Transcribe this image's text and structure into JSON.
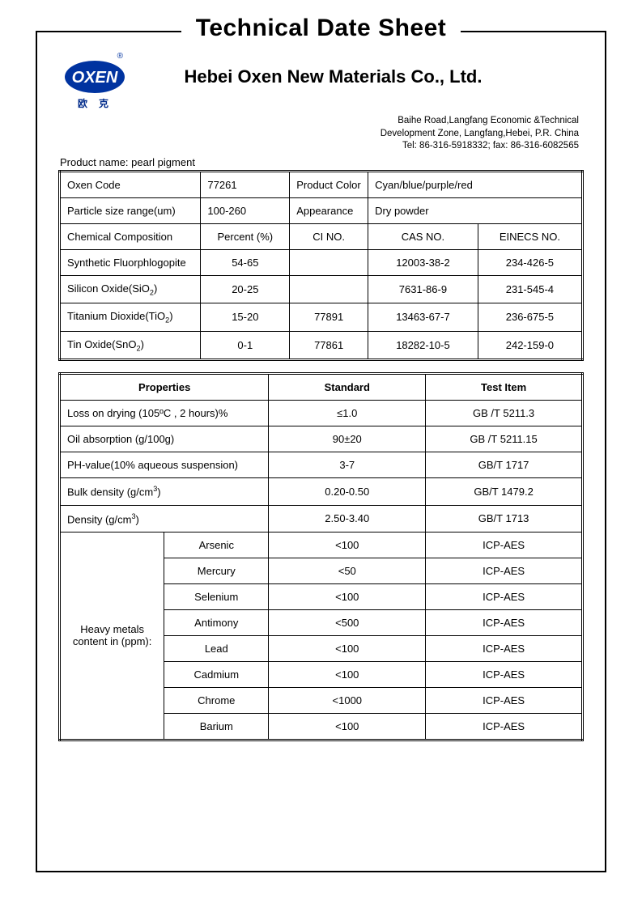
{
  "document": {
    "title": "Technical Date Sheet",
    "company": "Hebei Oxen New Materials Co., Ltd.",
    "logo_text": "OXEN",
    "logo_sub": "欧克",
    "reg_mark": "®",
    "address_line1": "Baihe Road,Langfang Economic &Technical",
    "address_line2": "Development Zone, Langfang,Hebei, P.R. China",
    "address_line3": "Tel: 86-316-5918332;     fax: 86-316-6082565",
    "product_name_label": "Product name: pearl pigment"
  },
  "table1": {
    "r1": {
      "c1": "Oxen Code",
      "c2": "77261",
      "c3": "Product Color",
      "c4": "Cyan/blue/purple/red"
    },
    "r2": {
      "c1": "Particle size range(um)",
      "c2": "100-260",
      "c3": "Appearance",
      "c4": "Dry powder"
    },
    "r3": {
      "c1": "Chemical Composition",
      "c2": "Percent (%)",
      "c3": "CI NO.",
      "c4": "CAS NO.",
      "c5": "EINECS NO."
    },
    "r4": {
      "c1": "Synthetic Fluorphlogopite",
      "c2": "54-65",
      "c3": "",
      "c4": "12003-38-2",
      "c5": "234-426-5"
    },
    "r5": {
      "c1_html": "Silicon Oxide(SiO<sub>2</sub>)",
      "c2": "20-25",
      "c3": "",
      "c4": "7631-86-9",
      "c5": "231-545-4"
    },
    "r6": {
      "c1_html": "Titanium Dioxide(TiO<sub>2</sub>)",
      "c2": "15-20",
      "c3": "77891",
      "c4": "13463-67-7",
      "c5": "236-675-5"
    },
    "r7": {
      "c1_html": "Tin Oxide(SnO<sub>2</sub>)",
      "c2": "0-1",
      "c3": "77861",
      "c4": "18282-10-5",
      "c5": "242-159-0"
    }
  },
  "table2": {
    "header": {
      "c1": "Properties",
      "c2": "Standard",
      "c3": "Test Item"
    },
    "rows": [
      {
        "c1": "Loss on drying (105ºC , 2 hours)%",
        "c2": "≤1.0",
        "c3": "GB /T 5211.3"
      },
      {
        "c1": "Oil absorption    (g/100g)",
        "c2": "90±20",
        "c3": "GB /T 5211.15"
      },
      {
        "c1": "PH-value(10% aqueous suspension)",
        "c2": "3-7",
        "c3": "GB/T 1717"
      },
      {
        "c1_html": "Bulk density (g/cm<sup>3</sup>)",
        "c2": "0.20-0.50",
        "c3": "GB/T 1479.2"
      },
      {
        "c1_html": "Density (g/cm<sup>3</sup>)",
        "c2": "2.50-3.40",
        "c3": "GB/T 1713"
      }
    ],
    "heavy_label": "Heavy metals content in (ppm):",
    "heavy": [
      {
        "name": "Arsenic",
        "std": "<100",
        "test": "ICP-AES"
      },
      {
        "name": "Mercury",
        "std": "<50",
        "test": "ICP-AES"
      },
      {
        "name": "Selenium",
        "std": "<100",
        "test": "ICP-AES"
      },
      {
        "name": "Antimony",
        "std": "<500",
        "test": "ICP-AES"
      },
      {
        "name": "Lead",
        "std": "<100",
        "test": "ICP-AES"
      },
      {
        "name": "Cadmium",
        "std": "<100",
        "test": "ICP-AES"
      },
      {
        "name": "Chrome",
        "std": "<1000",
        "test": "ICP-AES"
      },
      {
        "name": "Barium",
        "std": "<100",
        "test": "ICP-AES"
      }
    ]
  },
  "colors": {
    "logo_blue": "#0033a0",
    "border": "#000000",
    "background": "#ffffff"
  }
}
